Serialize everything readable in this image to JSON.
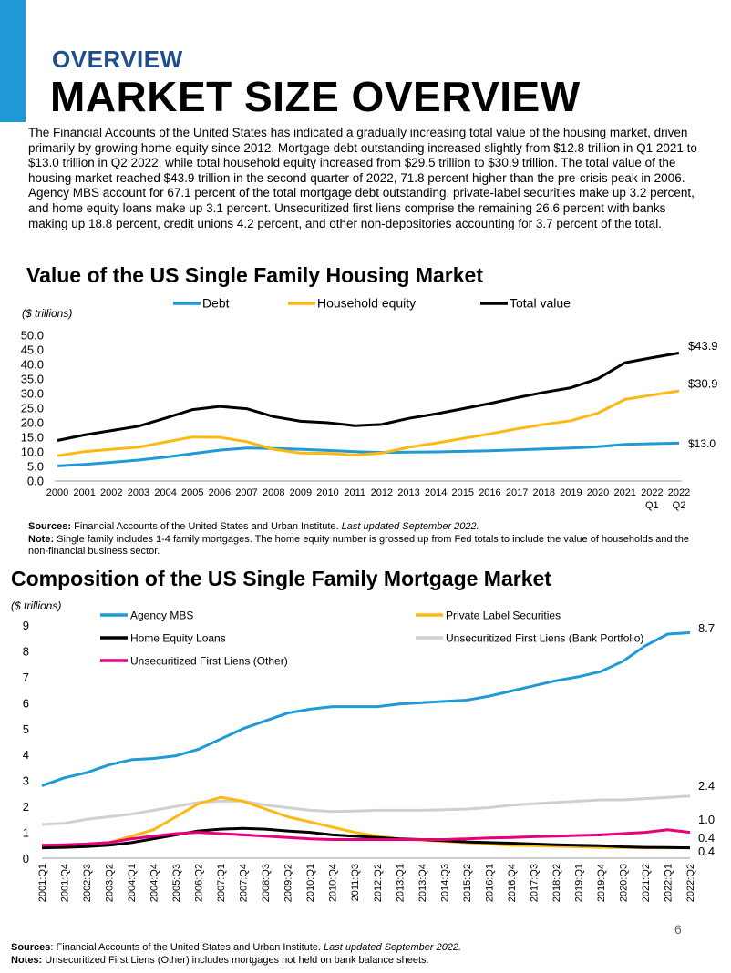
{
  "header": {
    "kicker": "OVERVIEW",
    "title": "MARKET SIZE OVERVIEW"
  },
  "intro_text": "The Financial Accounts of the United States has indicated a gradually increasing total value of the housing market, driven primarily by growing home equity since 2012. Mortgage debt outstanding increased slightly from $12.8 trillion in Q1 2021 to $13.0 trillion in Q2 2022, while total household equity increased from $29.5 trillion to $30.9 trillion. The total value of the housing market reached $43.9 trillion in the second quarter of 2022, 71.8 percent higher than the pre-crisis peak in 2006. Agency MBS account for 67.1 percent of the total mortgage debt outstanding, private-label securities make up 3.2 percent,  and home equity loans make up 3.1 percent. Unsecuritized first liens comprise the remaining 26.6 percent with banks making up 18.8 percent, credit unions 4.2 percent, and other non-depositories accounting for 3.7 percent of the total.",
  "notes1": {
    "sources_label": "Sources:",
    "sources_text": " Financial Accounts of the United States and Urban Institute. ",
    "sources_italic": "Last updated September 2022.",
    "note_label": "Note:",
    "note_text": " Single family includes 1-4 family mortgages. The home equity number is grossed up from Fed totals to include the value of households and the non-financial business sector."
  },
  "notes2": {
    "sources_label": "Sources",
    "sources_text": ": Financial Accounts of the United States and Urban Institute. ",
    "sources_italic": "Last updated September 2022.",
    "note_label": "Notes:",
    "note_text": " Unsecuritized First Liens (Other) includes mortgages not held on bank balance sheets."
  },
  "page_number": "6",
  "chart_data": [
    {
      "type": "line",
      "title": "Value of the US Single Family Housing Market",
      "ylabel": "($ trillions)",
      "ylim": [
        0,
        50
      ],
      "yticks": [
        "0.0",
        "5.0",
        "10.0",
        "15.0",
        "20.0",
        "25.0",
        "30.0",
        "35.0",
        "40.0",
        "45.0",
        "50.0"
      ],
      "categories": [
        "2000",
        "2001",
        "2002",
        "2003",
        "2004",
        "2005",
        "2006",
        "2007",
        "2008",
        "2009",
        "2010",
        "2011",
        "2012",
        "2013",
        "2014",
        "2015",
        "2016",
        "2017",
        "2018",
        "2019",
        "2020",
        "2021",
        "2022 Q1",
        "2022 Q2"
      ],
      "category_lines": [
        [
          "2000"
        ],
        [
          "2001"
        ],
        [
          "2002"
        ],
        [
          "2003"
        ],
        [
          "2004"
        ],
        [
          "2005"
        ],
        [
          "2006"
        ],
        [
          "2007"
        ],
        [
          "2008"
        ],
        [
          "2009"
        ],
        [
          "2010"
        ],
        [
          "2011"
        ],
        [
          "2012"
        ],
        [
          "2013"
        ],
        [
          "2014"
        ],
        [
          "2015"
        ],
        [
          "2016"
        ],
        [
          "2017"
        ],
        [
          "2018"
        ],
        [
          "2019"
        ],
        [
          "2020"
        ],
        [
          "2021"
        ],
        [
          "2022",
          "Q1"
        ],
        [
          "2022",
          "Q2"
        ]
      ],
      "series": [
        {
          "name": "Debt",
          "color": "#1f9ad6",
          "end_label": "$13.0",
          "values": [
            5.2,
            5.7,
            6.4,
            7.2,
            8.2,
            9.4,
            10.6,
            11.3,
            11.2,
            10.9,
            10.5,
            10.1,
            9.8,
            9.9,
            10.0,
            10.2,
            10.4,
            10.7,
            11.0,
            11.3,
            11.8,
            12.6,
            12.8,
            13.0
          ]
        },
        {
          "name": "Household equity",
          "color": "#fdb913",
          "end_label": "$30.9",
          "values": [
            8.7,
            10.1,
            10.9,
            11.6,
            13.4,
            15.1,
            15.0,
            13.5,
            10.9,
            9.6,
            9.5,
            8.9,
            9.6,
            11.6,
            13.0,
            14.6,
            16.2,
            17.9,
            19.4,
            20.7,
            23.3,
            28.0,
            29.5,
            30.9
          ]
        },
        {
          "name": "Total value",
          "color": "#000000",
          "end_label": "$43.9",
          "values": [
            13.9,
            15.8,
            17.3,
            18.8,
            21.6,
            24.5,
            25.6,
            24.8,
            22.1,
            20.5,
            20.0,
            19.0,
            19.4,
            21.5,
            23.0,
            24.8,
            26.6,
            28.6,
            30.4,
            32.0,
            35.1,
            40.6,
            42.3,
            43.9
          ]
        }
      ]
    },
    {
      "type": "line",
      "title": "Composition of the US Single Family Mortgage Market",
      "ylabel": "($ trillions)",
      "ylim": [
        0,
        9
      ],
      "yticks": [
        "0",
        "1",
        "2",
        "3",
        "4",
        "5",
        "6",
        "7",
        "8",
        "9"
      ],
      "categories": [
        "2001:Q1",
        "2001:Q4",
        "2002:Q3",
        "2003:Q2",
        "2004:Q1",
        "2004:Q4",
        "2005:Q3",
        "2006:Q2",
        "2007:Q1",
        "2007:Q4",
        "2008:Q3",
        "2009:Q2",
        "2010:Q1",
        "2010:Q4",
        "2011:Q3",
        "2012:Q2",
        "2013:Q1",
        "2013:Q4",
        "2014:Q3",
        "2015:Q2",
        "2016:Q1",
        "2016:Q4",
        "2017:Q3",
        "2018:Q2",
        "2019:Q1",
        "2019:Q4",
        "2020:Q3",
        "2021:Q2",
        "2022:Q1",
        "2022:Q2"
      ],
      "series": [
        {
          "name": "Agency MBS",
          "color": "#1f9ad6",
          "end_label": "8.7",
          "values": [
            2.8,
            3.1,
            3.3,
            3.6,
            3.8,
            3.85,
            3.95,
            4.2,
            4.6,
            5.0,
            5.3,
            5.6,
            5.75,
            5.85,
            5.85,
            5.85,
            5.95,
            6.0,
            6.05,
            6.1,
            6.25,
            6.45,
            6.65,
            6.85,
            7.0,
            7.2,
            7.6,
            8.2,
            8.65,
            8.7
          ]
        },
        {
          "name": "Private Label Securities",
          "color": "#fdb913",
          "end_label": "0.4",
          "values": [
            0.5,
            0.5,
            0.55,
            0.6,
            0.85,
            1.1,
            1.6,
            2.1,
            2.35,
            2.2,
            1.9,
            1.6,
            1.4,
            1.2,
            1.0,
            0.85,
            0.75,
            0.7,
            0.65,
            0.6,
            0.55,
            0.5,
            0.48,
            0.46,
            0.44,
            0.42,
            0.41,
            0.4,
            0.4,
            0.4
          ]
        },
        {
          "name": "Home Equity Loans",
          "color": "#000000",
          "end_label": "0.4",
          "values": [
            0.4,
            0.42,
            0.45,
            0.5,
            0.6,
            0.75,
            0.9,
            1.05,
            1.12,
            1.15,
            1.12,
            1.05,
            1.0,
            0.9,
            0.85,
            0.8,
            0.75,
            0.72,
            0.68,
            0.63,
            0.6,
            0.58,
            0.55,
            0.52,
            0.5,
            0.48,
            0.44,
            0.42,
            0.41,
            0.4
          ]
        },
        {
          "name": "Unsecuritized First Liens (Bank Portfolio)",
          "color": "#d0d0d0",
          "end_label": "2.4",
          "values": [
            1.3,
            1.35,
            1.5,
            1.6,
            1.7,
            1.85,
            2.0,
            2.15,
            2.2,
            2.2,
            2.05,
            1.95,
            1.85,
            1.8,
            1.82,
            1.85,
            1.85,
            1.85,
            1.87,
            1.9,
            1.95,
            2.05,
            2.1,
            2.15,
            2.2,
            2.25,
            2.25,
            2.3,
            2.35,
            2.4
          ]
        },
        {
          "name": "Unsecuritized First Liens (Other)",
          "color": "#e6007e",
          "end_label": "1.0",
          "values": [
            0.5,
            0.52,
            0.55,
            0.6,
            0.75,
            0.85,
            0.95,
            1.0,
            0.95,
            0.9,
            0.85,
            0.8,
            0.75,
            0.72,
            0.72,
            0.72,
            0.72,
            0.72,
            0.72,
            0.75,
            0.78,
            0.8,
            0.83,
            0.85,
            0.88,
            0.9,
            0.95,
            1.0,
            1.1,
            1.0
          ]
        }
      ]
    }
  ]
}
